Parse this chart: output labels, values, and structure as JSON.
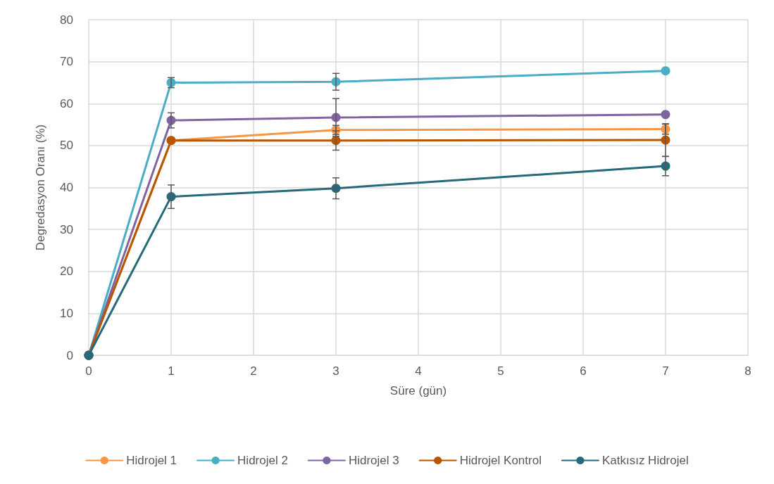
{
  "chart_data": {
    "type": "line",
    "xlabel": "Süre (gün)",
    "ylabel": "Degredasyon Oranı (%)",
    "x": [
      0,
      1,
      3,
      7
    ],
    "xlim": [
      0,
      8
    ],
    "xticks": [
      0,
      1,
      2,
      3,
      4,
      5,
      6,
      7,
      8
    ],
    "ylim": [
      0,
      80
    ],
    "yticks": [
      0,
      10,
      20,
      30,
      40,
      50,
      60,
      70,
      80
    ],
    "grid": true,
    "legend": "bottom",
    "marker": "circle",
    "line_style": "solid",
    "series": [
      {
        "name": "Hidrojel 1",
        "color": "#f79646",
        "values": [
          0,
          51.2,
          53.7,
          53.9
        ],
        "errors": [
          null,
          null,
          1.1,
          1.2
        ]
      },
      {
        "name": "Hidrojel 2",
        "color": "#4bacc6",
        "values": [
          0,
          65,
          65.2,
          67.8
        ],
        "errors": [
          null,
          1.2,
          2,
          null
        ]
      },
      {
        "name": "Hidrojel 3",
        "color": "#8064a2",
        "values": [
          0,
          56,
          56.7,
          57.4
        ],
        "errors": [
          null,
          1.8,
          4.5,
          null
        ]
      },
      {
        "name": "Hidrojel Kontrol",
        "color": "#b85600",
        "values": [
          0,
          51.2,
          51.2,
          51.3
        ],
        "errors": [
          null,
          null,
          2.3,
          3.9
        ]
      },
      {
        "name": "Katkısız Hidrojel",
        "color": "#256a7a",
        "values": [
          0,
          37.8,
          39.8,
          45.1
        ],
        "errors": [
          null,
          2.8,
          2.5,
          2.3
        ]
      }
    ]
  }
}
